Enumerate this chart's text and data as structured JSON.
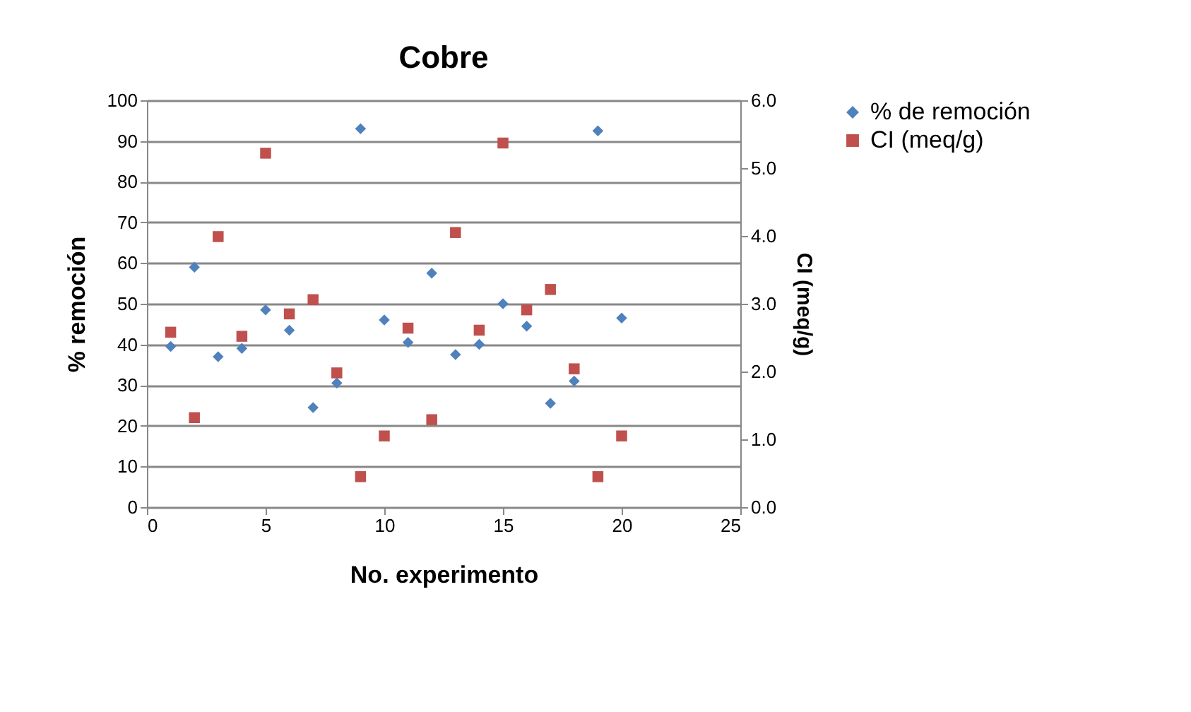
{
  "chart_data": {
    "type": "scatter",
    "title": "Cobre",
    "xlabel": "No. experimento",
    "ylabel": "% remoción",
    "y2label": "CI (meq/g)",
    "x": [
      1,
      2,
      3,
      4,
      5,
      6,
      7,
      8,
      9,
      10,
      11,
      12,
      13,
      14,
      15,
      16,
      17,
      18,
      19,
      20
    ],
    "series": [
      {
        "name": "% de remoción",
        "color": "#4f81bd",
        "marker": "diamond",
        "values": [
          39.5,
          59,
          37,
          39,
          48.5,
          43.5,
          24.5,
          30.5,
          93,
          46,
          40.5,
          57.5,
          37.5,
          40,
          50,
          44.5,
          25.5,
          31,
          92.5,
          46.5
        ]
      },
      {
        "name": "CI (meq/g)",
        "color": "#c0504d",
        "marker": "square",
        "axis": "y2",
        "values": [
          2.58,
          1.32,
          3.99,
          2.52,
          5.22,
          2.85,
          3.06,
          1.98,
          0.45,
          1.05,
          2.64,
          1.29,
          4.05,
          2.61,
          5.37,
          2.91,
          3.21,
          2.04,
          0.45,
          1.05
        ]
      }
    ],
    "xlim": [
      0,
      25
    ],
    "xticks": [
      0,
      5,
      10,
      15,
      20,
      25
    ],
    "ylim": [
      0,
      100
    ],
    "yticks": [
      0,
      10,
      20,
      30,
      40,
      50,
      60,
      70,
      80,
      90,
      100
    ],
    "y2lim": [
      0,
      6
    ],
    "y2ticks": [
      {
        "value": 0,
        "label": "0.0"
      },
      {
        "value": 1,
        "label": "1.0"
      },
      {
        "value": 2,
        "label": "2.0"
      },
      {
        "value": 3,
        "label": "3.0"
      },
      {
        "value": 4,
        "label": "4.0"
      },
      {
        "value": 5,
        "label": "5.0"
      },
      {
        "value": 6,
        "label": "6.0"
      }
    ],
    "grid": "y",
    "legend": "right"
  }
}
